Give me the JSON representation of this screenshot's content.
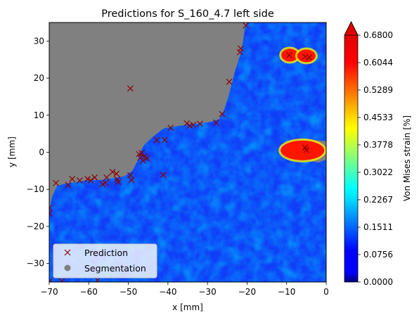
{
  "chart_data": {
    "type": "heatmap",
    "title": "Predictions for S_160_4.7 left side",
    "xlabel": "x [mm]",
    "ylabel": "y [mm]",
    "xlim": [
      -70,
      0
    ],
    "ylim": [
      -35,
      35
    ],
    "xticks": [
      -70,
      -60,
      -50,
      -40,
      -30,
      -20,
      -10,
      0
    ],
    "yticks": [
      -30,
      -20,
      -10,
      0,
      10,
      20,
      30
    ],
    "colorbar": {
      "label": "Von Mises strain [%]",
      "min": 0.0,
      "max": 0.68,
      "colormap": "jet",
      "extend": "max",
      "ticks": [
        "0.0000",
        "0.0756",
        "0.1511",
        "0.2267",
        "0.3022",
        "0.3778",
        "0.4533",
        "0.5289",
        "0.6044",
        "0.6800"
      ]
    },
    "legend": {
      "placement": "lower-left",
      "entries": [
        {
          "label": "Prediction",
          "marker": "x",
          "color": "#8b0000"
        },
        {
          "label": "Segmentation",
          "marker": "circle",
          "color": "#808080"
        }
      ]
    },
    "segmentation_regions": [
      {
        "name": "upper-left",
        "outline": [
          [
            -70,
            35
          ],
          [
            -20,
            35
          ],
          [
            -20.5,
            34
          ],
          [
            -21,
            30
          ],
          [
            -21.5,
            27
          ],
          [
            -23,
            22
          ],
          [
            -24,
            18
          ],
          [
            -25,
            14
          ],
          [
            -26,
            11
          ],
          [
            -27,
            9
          ],
          [
            -29,
            8.2
          ],
          [
            -32,
            7.8
          ],
          [
            -35,
            7.5
          ],
          [
            -38,
            7
          ],
          [
            -41,
            6.5
          ],
          [
            -44,
            4
          ],
          [
            -46,
            2
          ],
          [
            -47,
            0
          ],
          [
            -47.5,
            -2
          ],
          [
            -49,
            -5
          ],
          [
            -51,
            -6.5
          ],
          [
            -54,
            -7
          ],
          [
            -57,
            -7.5
          ],
          [
            -60,
            -7.5
          ],
          [
            -63,
            -8
          ],
          [
            -66,
            -8.5
          ],
          [
            -68,
            -9
          ],
          [
            -69.3,
            -12
          ],
          [
            -70,
            -16
          ]
        ]
      },
      {
        "name": "right-hole",
        "outline": [
          [
            -11,
            2
          ],
          [
            -8,
            3.2
          ],
          [
            -5,
            3.5
          ],
          [
            -2,
            3.2
          ],
          [
            0,
            3
          ],
          [
            0,
            -2
          ],
          [
            -2,
            -2.8
          ],
          [
            -5,
            -2
          ],
          [
            -8,
            -1
          ],
          [
            -10.5,
            0
          ]
        ]
      },
      {
        "name": "small-top-right-1",
        "outline": [
          [
            -10.5,
            27.5
          ],
          [
            -8.5,
            28
          ],
          [
            -7.8,
            26
          ],
          [
            -9,
            24.5
          ],
          [
            -10.5,
            25
          ]
        ]
      },
      {
        "name": "small-top-right-2",
        "outline": [
          [
            -6.5,
            27.5
          ],
          [
            -3.5,
            27.5
          ],
          [
            -3,
            25
          ],
          [
            -4.5,
            24
          ],
          [
            -6.5,
            24.5
          ]
        ]
      }
    ],
    "predictions": [
      {
        "x": -70,
        "y": -15
      },
      {
        "x": -70,
        "y": -16.5
      },
      {
        "x": -70,
        "y": -35
      },
      {
        "x": -68.3,
        "y": -8.3
      },
      {
        "x": -66.8,
        "y": -34.8
      },
      {
        "x": -65.2,
        "y": -8.8
      },
      {
        "x": -64.2,
        "y": -7.2
      },
      {
        "x": -62.3,
        "y": -7.6
      },
      {
        "x": -60.3,
        "y": -7.2
      },
      {
        "x": -59.5,
        "y": -7.6
      },
      {
        "x": -58.5,
        "y": -6.8
      },
      {
        "x": -57.8,
        "y": -34.5
      },
      {
        "x": -56.5,
        "y": -8.6
      },
      {
        "x": -55.8,
        "y": -8.3
      },
      {
        "x": -55.5,
        "y": -6.8
      },
      {
        "x": -54,
        "y": -5.3
      },
      {
        "x": -53,
        "y": -5.8
      },
      {
        "x": -52.8,
        "y": -7.3
      },
      {
        "x": -52.6,
        "y": -8
      },
      {
        "x": -49.5,
        "y": 17.2
      },
      {
        "x": -49.5,
        "y": -6.2
      },
      {
        "x": -49.2,
        "y": -7.5
      },
      {
        "x": -47.3,
        "y": -0.5
      },
      {
        "x": -47,
        "y": -1.5
      },
      {
        "x": -46.6,
        "y": -0.2
      },
      {
        "x": -46.3,
        "y": -2.3
      },
      {
        "x": -46,
        "y": -1.2
      },
      {
        "x": -45.3,
        "y": -1.6
      },
      {
        "x": -42.8,
        "y": 3.3
      },
      {
        "x": -41.2,
        "y": -6.1
      },
      {
        "x": -40.8,
        "y": 3.3
      },
      {
        "x": -39.3,
        "y": 6.6
      },
      {
        "x": -35.2,
        "y": 7.8
      },
      {
        "x": -34.5,
        "y": 7.2
      },
      {
        "x": -33.6,
        "y": 7.4
      },
      {
        "x": -31.9,
        "y": 7.7
      },
      {
        "x": -27.8,
        "y": 8
      },
      {
        "x": -26.3,
        "y": 10.3
      },
      {
        "x": -24.5,
        "y": 19
      },
      {
        "x": -21.8,
        "y": 27
      },
      {
        "x": -21.6,
        "y": 28
      },
      {
        "x": -20.3,
        "y": 34.2
      },
      {
        "x": -9.3,
        "y": 26.2
      },
      {
        "x": -5.3,
        "y": 25.8
      },
      {
        "x": -4.3,
        "y": 25.6
      },
      {
        "x": -5.3,
        "y": 1.3
      },
      {
        "x": -5,
        "y": 0.6
      }
    ]
  }
}
